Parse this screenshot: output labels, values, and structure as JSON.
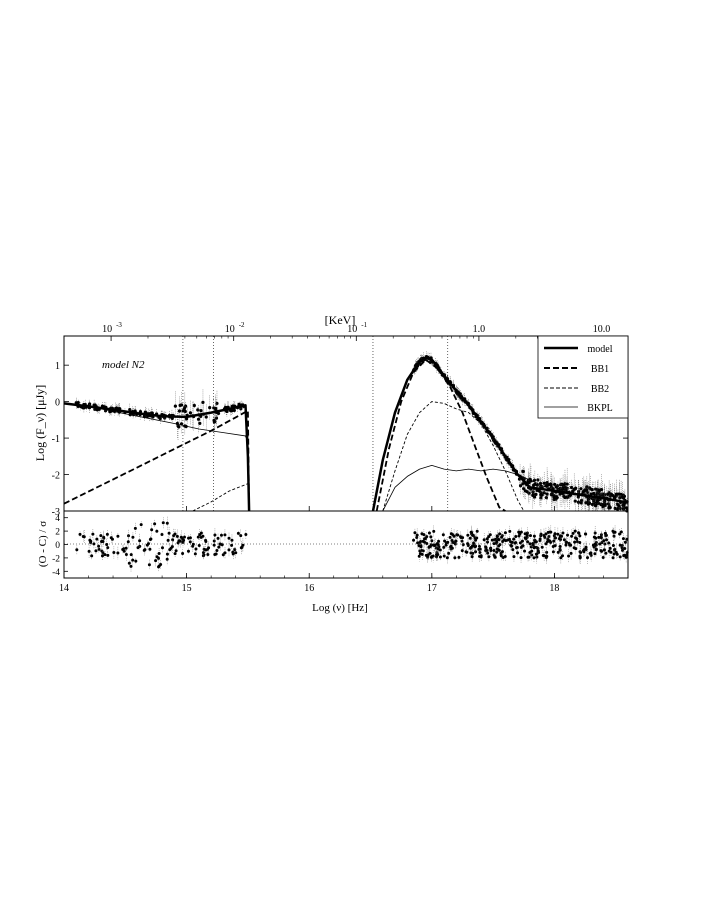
{
  "chart_data": {
    "type": "line",
    "panels": [
      {
        "id": "sed",
        "annotation": "model N2",
        "ylabel": "Log (F_ν) [μJy]",
        "xlim": [
          14,
          18.6
        ],
        "ylim": [
          -3,
          1.8
        ],
        "yticks": [
          1,
          0,
          -1,
          -2,
          -3
        ],
        "top_axis": {
          "label": "[KeV]",
          "ticks": [
            {
              "value": 0.001,
              "label": "10",
              "exp": "-3"
            },
            {
              "value": 0.01,
              "label": "10",
              "exp": "-2"
            },
            {
              "value": 0.1,
              "label": "10",
              "exp": "-1"
            },
            {
              "value": 1.0,
              "label": "1.0",
              "exp": ""
            },
            {
              "value": 10.0,
              "label": "10.0",
              "exp": ""
            }
          ]
        },
        "vlines": [
          14.97,
          15.22,
          16.52,
          17.13
        ],
        "legend": {
          "position": "top-right",
          "entries": [
            {
              "name": "model",
              "style": "thick-solid"
            },
            {
              "name": "BB1",
              "style": "thick-dashed"
            },
            {
              "name": "BB2",
              "style": "thin-dashed"
            },
            {
              "name": "BKPL",
              "style": "thin-solid"
            }
          ]
        },
        "series": [
          {
            "name": "model",
            "style": "thick-solid",
            "segments": [
              {
                "x": [
                  14.0,
                  14.2,
                  14.4,
                  14.6,
                  14.8,
                  15.0,
                  15.2,
                  15.35,
                  15.48,
                  15.5,
                  15.51
                ],
                "y": [
                  -0.05,
                  -0.13,
                  -0.22,
                  -0.32,
                  -0.4,
                  -0.42,
                  -0.3,
                  -0.2,
                  -0.1,
                  -1.5,
                  -3.0
                ]
              },
              {
                "x": [
                  16.52,
                  16.6,
                  16.7,
                  16.8,
                  16.9,
                  16.95,
                  17.0,
                  17.05,
                  17.1,
                  17.2,
                  17.3,
                  17.4,
                  17.5,
                  17.6,
                  17.7,
                  17.8,
                  18.0,
                  18.2,
                  18.4,
                  18.6
                ],
                "y": [
                  -3.0,
                  -1.6,
                  -0.3,
                  0.6,
                  1.1,
                  1.2,
                  1.15,
                  0.95,
                  0.7,
                  0.3,
                  -0.1,
                  -0.55,
                  -1.0,
                  -1.5,
                  -2.0,
                  -2.35,
                  -2.45,
                  -2.55,
                  -2.65,
                  -2.77
                ]
              }
            ]
          },
          {
            "name": "BB1",
            "style": "thick-dashed",
            "segments": [
              {
                "x": [
                  14.0,
                  14.3,
                  14.6,
                  14.9,
                  15.2,
                  15.5,
                  15.51
                ],
                "y": [
                  -2.8,
                  -2.3,
                  -1.8,
                  -1.3,
                  -0.8,
                  -0.25,
                  -3.0
                ]
              },
              {
                "x": [
                  16.55,
                  16.65,
                  16.75,
                  16.85,
                  16.95,
                  17.05,
                  17.15,
                  17.25,
                  17.35,
                  17.45,
                  17.55,
                  17.6
                ],
                "y": [
                  -3.0,
                  -1.3,
                  0.0,
                  0.8,
                  1.15,
                  0.9,
                  0.4,
                  -0.3,
                  -1.2,
                  -2.1,
                  -2.9,
                  -3.0
                ]
              }
            ]
          },
          {
            "name": "BB2",
            "style": "thin-dashed",
            "segments": [
              {
                "x": [
                  15.05,
                  15.2,
                  15.35,
                  15.5
                ],
                "y": [
                  -3.0,
                  -2.75,
                  -2.45,
                  -2.25
                ]
              },
              {
                "x": [
                  16.6,
                  16.7,
                  16.8,
                  16.9,
                  17.0,
                  17.1,
                  17.2,
                  17.3,
                  17.4,
                  17.5,
                  17.6,
                  17.7,
                  17.75
                ],
                "y": [
                  -3.0,
                  -1.9,
                  -0.9,
                  -0.3,
                  0.0,
                  -0.05,
                  -0.2,
                  -0.3,
                  -0.6,
                  -1.2,
                  -1.9,
                  -2.7,
                  -3.0
                ]
              }
            ]
          },
          {
            "name": "BKPL",
            "style": "thin-solid",
            "segments": [
              {
                "x": [
                  14.0,
                  14.3,
                  14.6,
                  14.9,
                  15.1,
                  15.3,
                  15.5
                ],
                "y": [
                  -0.05,
                  -0.2,
                  -0.4,
                  -0.6,
                  -0.75,
                  -0.85,
                  -0.95
                ]
              },
              {
                "x": [
                  16.6,
                  16.7,
                  16.8,
                  16.9,
                  17.0,
                  17.1,
                  17.2,
                  17.3,
                  17.4,
                  17.5,
                  17.6,
                  17.7,
                  17.8,
                  17.9,
                  18.0
                ],
                "y": [
                  -3.0,
                  -2.35,
                  -2.05,
                  -1.85,
                  -1.75,
                  -1.85,
                  -1.9,
                  -1.85,
                  -1.9,
                  -1.85,
                  -1.9,
                  -2.0,
                  -2.15,
                  -2.3,
                  -2.45
                ]
              }
            ]
          }
        ],
        "data_points": [
          {
            "region": "optical-uv",
            "x_range": [
              14.1,
              15.5
            ],
            "trend": "follows model segment, y ≈ -0.1 to -0.6 with large scatter near 14.9–15.2"
          },
          {
            "region": "x-ray",
            "x_range": [
              16.85,
              18.6
            ],
            "trend": "follows model segment from peak 1.2 down to -2.8"
          }
        ]
      },
      {
        "id": "residuals",
        "ylabel": "(O - C) / σ",
        "xlabel": "Log (ν) [Hz]",
        "xlim": [
          14,
          18.6
        ],
        "ylim": [
          -5,
          5
        ],
        "yticks": [
          4,
          2,
          0,
          -2,
          -4
        ],
        "xticks": [
          14,
          15,
          16,
          17,
          18
        ],
        "data_points": [
          {
            "region": "optical-uv",
            "x_range": [
              14.1,
              15.5
            ],
            "spread": [
              -4.5,
              4.5
            ]
          },
          {
            "region": "x-ray",
            "x_range": [
              16.85,
              18.6
            ],
            "spread": [
              -2.5,
              2.5
            ]
          }
        ]
      }
    ]
  }
}
